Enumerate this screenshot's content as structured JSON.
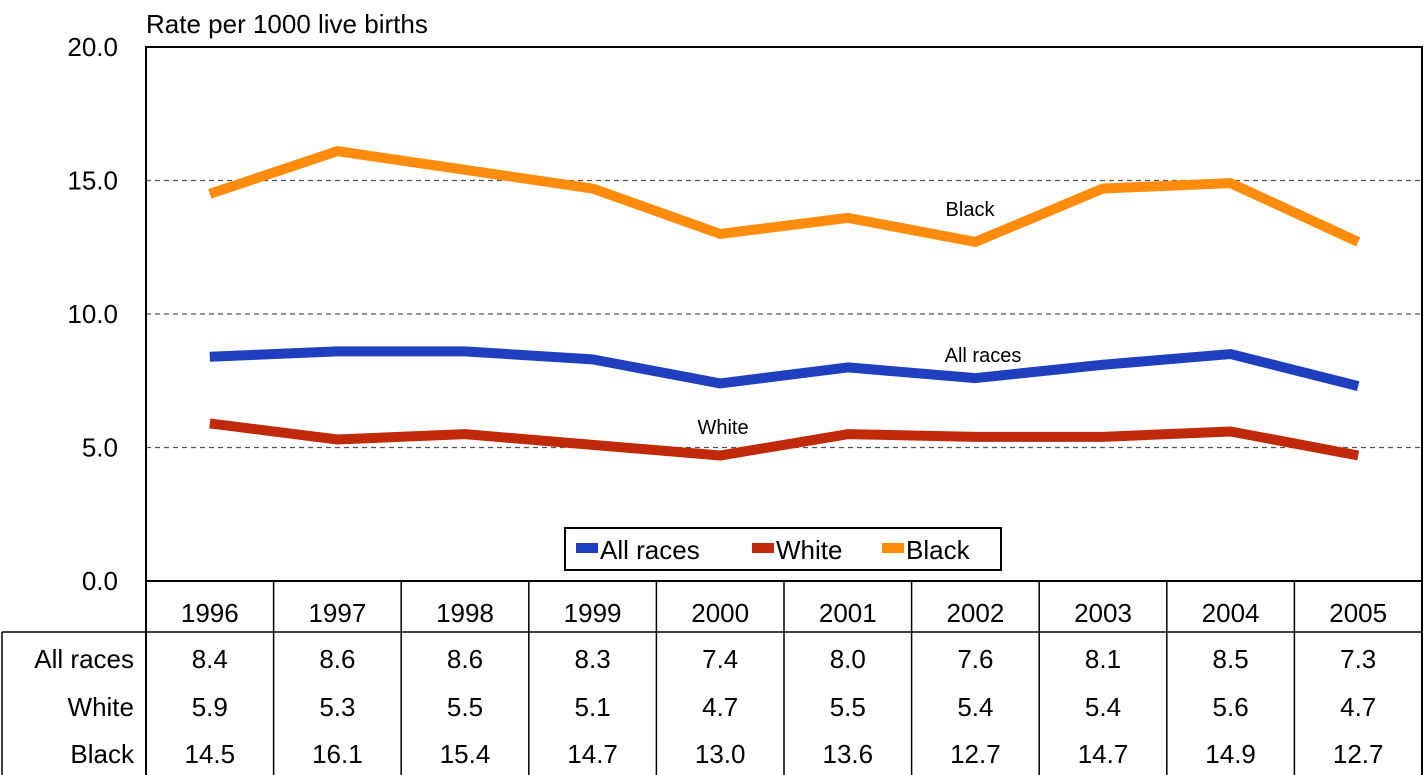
{
  "chart_data": {
    "type": "line",
    "ylabel": "Rate per 1000 live births",
    "ylim": [
      0,
      20
    ],
    "y_ticks": [
      "0.0",
      "5.0",
      "10.0",
      "15.0",
      "20.0"
    ],
    "categories": [
      "1996",
      "1997",
      "1998",
      "1999",
      "2000",
      "2001",
      "2002",
      "2003",
      "2004",
      "2005"
    ],
    "grid": "dashed horizontal",
    "legend_position": "bottom-center",
    "series": [
      {
        "name": "All races",
        "color": "#1f3fbf",
        "label": "All races",
        "values": [
          8.4,
          8.6,
          8.6,
          8.3,
          7.4,
          8.0,
          7.6,
          8.1,
          8.5,
          7.3
        ],
        "table_values": [
          "8.4",
          "8.6",
          "8.6",
          "8.3",
          "7.4",
          "8.0",
          "7.6",
          "8.1",
          "8.5",
          "7.3"
        ]
      },
      {
        "name": "White",
        "color": "#c0290a",
        "label": "White",
        "values": [
          5.9,
          5.3,
          5.5,
          5.1,
          4.7,
          5.5,
          5.4,
          5.4,
          5.6,
          4.7
        ],
        "table_values": [
          "5.9",
          "5.3",
          "5.5",
          "5.1",
          "4.7",
          "5.5",
          "5.4",
          "5.4",
          "5.6",
          "4.7"
        ]
      },
      {
        "name": "Black",
        "color": "#ff8c0d",
        "label": "Black",
        "values": [
          14.5,
          16.1,
          15.4,
          14.7,
          13.0,
          13.6,
          12.7,
          14.7,
          14.9,
          12.7
        ],
        "table_values": [
          "14.5",
          "16.1",
          "15.4",
          "14.7",
          "13.0",
          "13.6",
          "12.7",
          "14.7",
          "14.9",
          "12.7"
        ]
      }
    ]
  }
}
